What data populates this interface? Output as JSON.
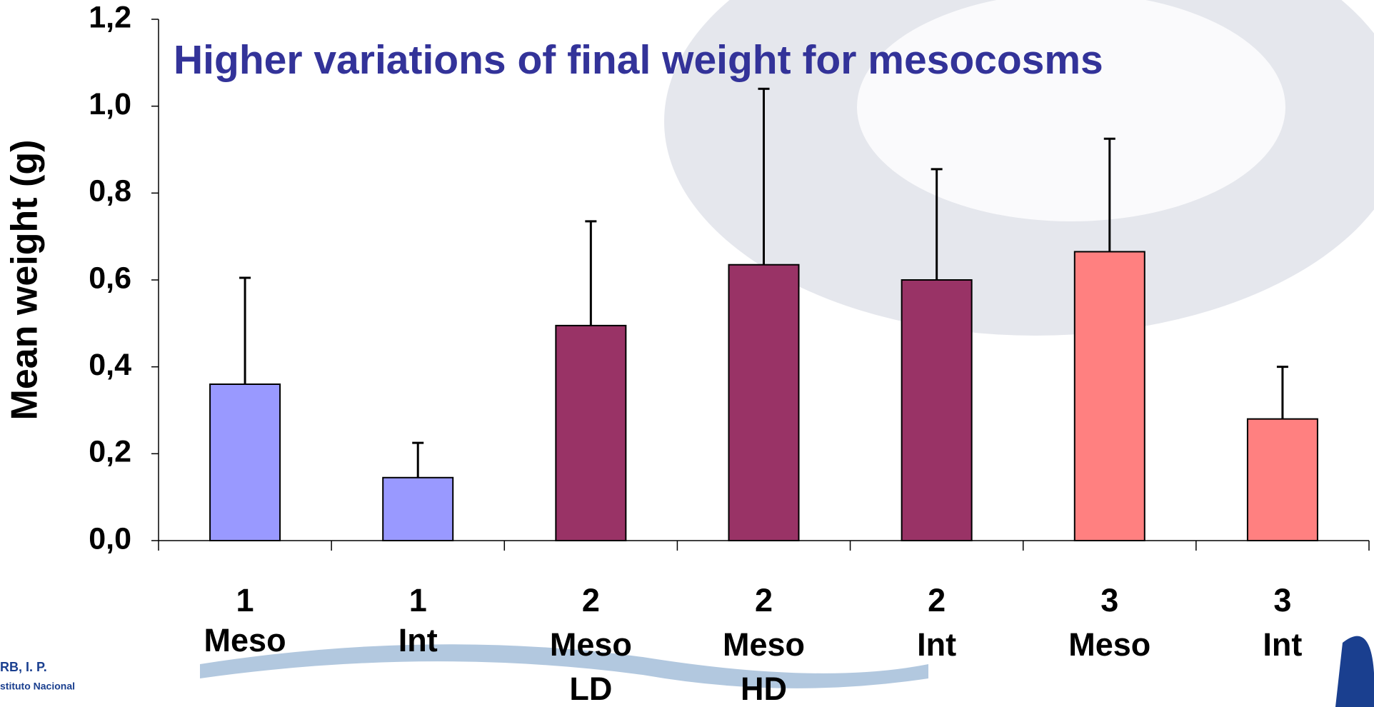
{
  "chart_data": {
    "type": "bar",
    "title": "Higher variations of final weight for mesocosms",
    "y_label": "Mean weight (g)",
    "categories": [
      [
        "1",
        "Meso"
      ],
      [
        "1",
        "Int"
      ],
      [
        "2",
        "Meso",
        "LD"
      ],
      [
        "2",
        "Meso",
        "HD"
      ],
      [
        "2",
        "Int"
      ],
      [
        "3",
        "Meso"
      ],
      [
        "3",
        "Int"
      ]
    ],
    "values": [
      0.36,
      0.145,
      0.495,
      0.635,
      0.6,
      0.665,
      0.28
    ],
    "errors": [
      0.245,
      0.08,
      0.24,
      0.405,
      0.255,
      0.26,
      0.12
    ],
    "colors": [
      "#9999ff",
      "#9999ff",
      "#993366",
      "#993366",
      "#993366",
      "#ff8080",
      "#ff8080"
    ],
    "ylim": [
      0,
      1.2
    ],
    "yticks": [
      {
        "value": 0,
        "label": "0,0"
      },
      {
        "value": 0.2,
        "label": "0,2"
      },
      {
        "value": 0.4,
        "label": "0,4"
      },
      {
        "value": 0.6,
        "label": "0,6"
      },
      {
        "value": 0.8,
        "label": "0,8"
      },
      {
        "value": 1.0,
        "label": "1,0"
      },
      {
        "value": 1.2,
        "label": "1,2"
      }
    ]
  },
  "footer": {
    "logo_line1": "RB, I. P.",
    "logo_line2": "stituto Nacional"
  }
}
